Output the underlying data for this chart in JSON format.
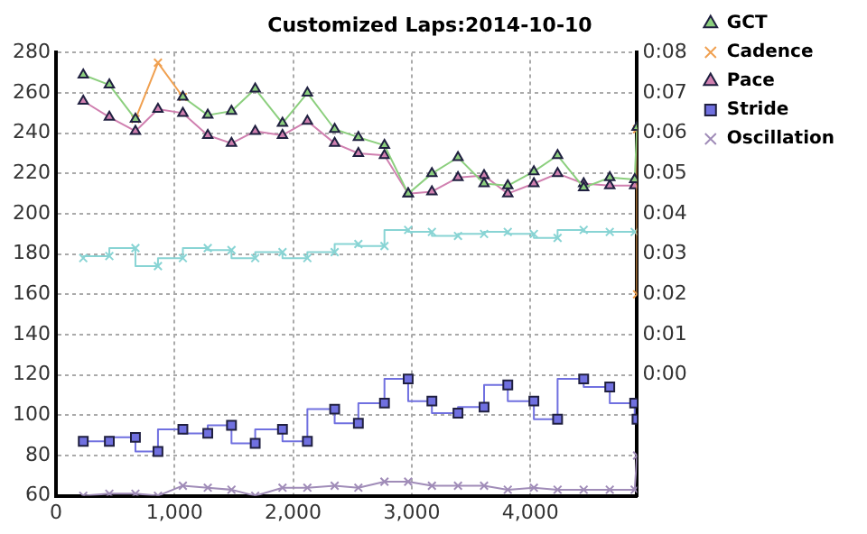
{
  "chart_data": {
    "type": "line",
    "title": "Customized Laps:2014-10-10",
    "x": [
      230,
      450,
      670,
      860,
      1070,
      1280,
      1480,
      1680,
      1910,
      2120,
      2350,
      2550,
      2770,
      2970,
      3170,
      3390,
      3610,
      3810,
      4030,
      4230,
      4450,
      4670,
      4880
    ],
    "series": [
      {
        "name": "GCT",
        "color": "#8ccf7e",
        "marker": "triangle",
        "x": [
          230,
          450,
          670,
          860,
          1070,
          1280,
          1480,
          1680,
          1910,
          2120,
          2350,
          2550,
          2770,
          2970,
          3170,
          3390,
          3610,
          3810,
          4030,
          4230,
          4450,
          4670,
          4880,
          4900
        ],
        "values": [
          269,
          264,
          247,
          null,
          258,
          249,
          251,
          262,
          245,
          260,
          242,
          238,
          234,
          210,
          220,
          228,
          215,
          214,
          221,
          229,
          213,
          218,
          217,
          243
        ]
      },
      {
        "name": "Cadence",
        "color": "#f0a050",
        "marker": "cross",
        "axis": "y2",
        "x": [
          670,
          860,
          1070,
          1080,
          4900,
          4900
        ],
        "values": [
          6.35,
          7.75,
          6.9,
          null,
          6.1,
          2.0
        ]
      },
      {
        "name": "Pace",
        "color": "#d080b0",
        "marker": "triangle",
        "values": [
          256,
          248,
          241,
          252,
          250,
          239,
          235,
          241,
          239,
          246,
          235,
          230,
          229,
          210,
          211,
          218,
          219,
          210,
          215,
          220,
          215,
          214,
          214
        ]
      },
      {
        "name": "Stride",
        "color": "#7070e0",
        "type": "step",
        "marker": "square",
        "x": [
          230,
          450,
          670,
          860,
          1070,
          1280,
          1480,
          1680,
          1910,
          2120,
          2350,
          2550,
          2770,
          2970,
          3170,
          3390,
          3610,
          3810,
          4030,
          4230,
          4450,
          4670,
          4880,
          4900
        ],
        "values": [
          87,
          87,
          89,
          82,
          93,
          91,
          95,
          86,
          93,
          87,
          103,
          96,
          106,
          118,
          107,
          101,
          104,
          115,
          107,
          98,
          118,
          114,
          106,
          98
        ]
      },
      {
        "name": "Oscillation",
        "color": "#a08cb8",
        "marker": "cross",
        "x": [
          230,
          450,
          670,
          860,
          1070,
          1280,
          1480,
          1680,
          1910,
          2120,
          2350,
          2550,
          2770,
          2970,
          3170,
          3390,
          3610,
          3810,
          4030,
          4230,
          4450,
          4670,
          4880,
          4900
        ],
        "values": [
          60,
          61,
          61,
          60,
          65,
          64,
          63,
          60,
          64,
          64,
          65,
          64,
          67,
          67,
          65,
          65,
          65,
          63,
          64,
          63,
          63,
          63,
          63,
          80
        ]
      },
      {
        "color": "#88d4d4",
        "type": "step",
        "marker": "cross",
        "values": [
          178,
          179,
          183,
          174,
          178,
          183,
          182,
          178,
          181,
          178,
          181,
          185,
          184,
          192,
          191,
          189,
          190,
          191,
          190,
          188,
          192,
          191,
          191
        ]
      }
    ],
    "xlim": [
      0,
      4900
    ],
    "xticks": [
      0,
      {
        "value": 1000,
        "label": "1,000"
      },
      {
        "value": 2000,
        "label": "2,000"
      },
      {
        "value": 3000,
        "label": "3,000"
      },
      {
        "value": 4000,
        "label": "4,000"
      }
    ],
    "ylim": [
      60,
      280
    ],
    "yticks": [
      60,
      80,
      100,
      120,
      140,
      160,
      180,
      200,
      220,
      240,
      260,
      280
    ],
    "y2lim": [
      -3,
      8
    ],
    "y2ticks": [
      {
        "value": 0,
        "label": "0:00"
      },
      {
        "value": 1,
        "label": "0:01"
      },
      {
        "value": 2,
        "label": "0:02"
      },
      {
        "value": 3,
        "label": "0:03"
      },
      {
        "value": 4,
        "label": "0:04"
      },
      {
        "value": 5,
        "label": "0:05"
      },
      {
        "value": 6,
        "label": "0:06"
      },
      {
        "value": 7,
        "label": "0:07"
      },
      {
        "value": 8,
        "label": "0:08"
      }
    ],
    "grid": true,
    "legend": "right"
  }
}
